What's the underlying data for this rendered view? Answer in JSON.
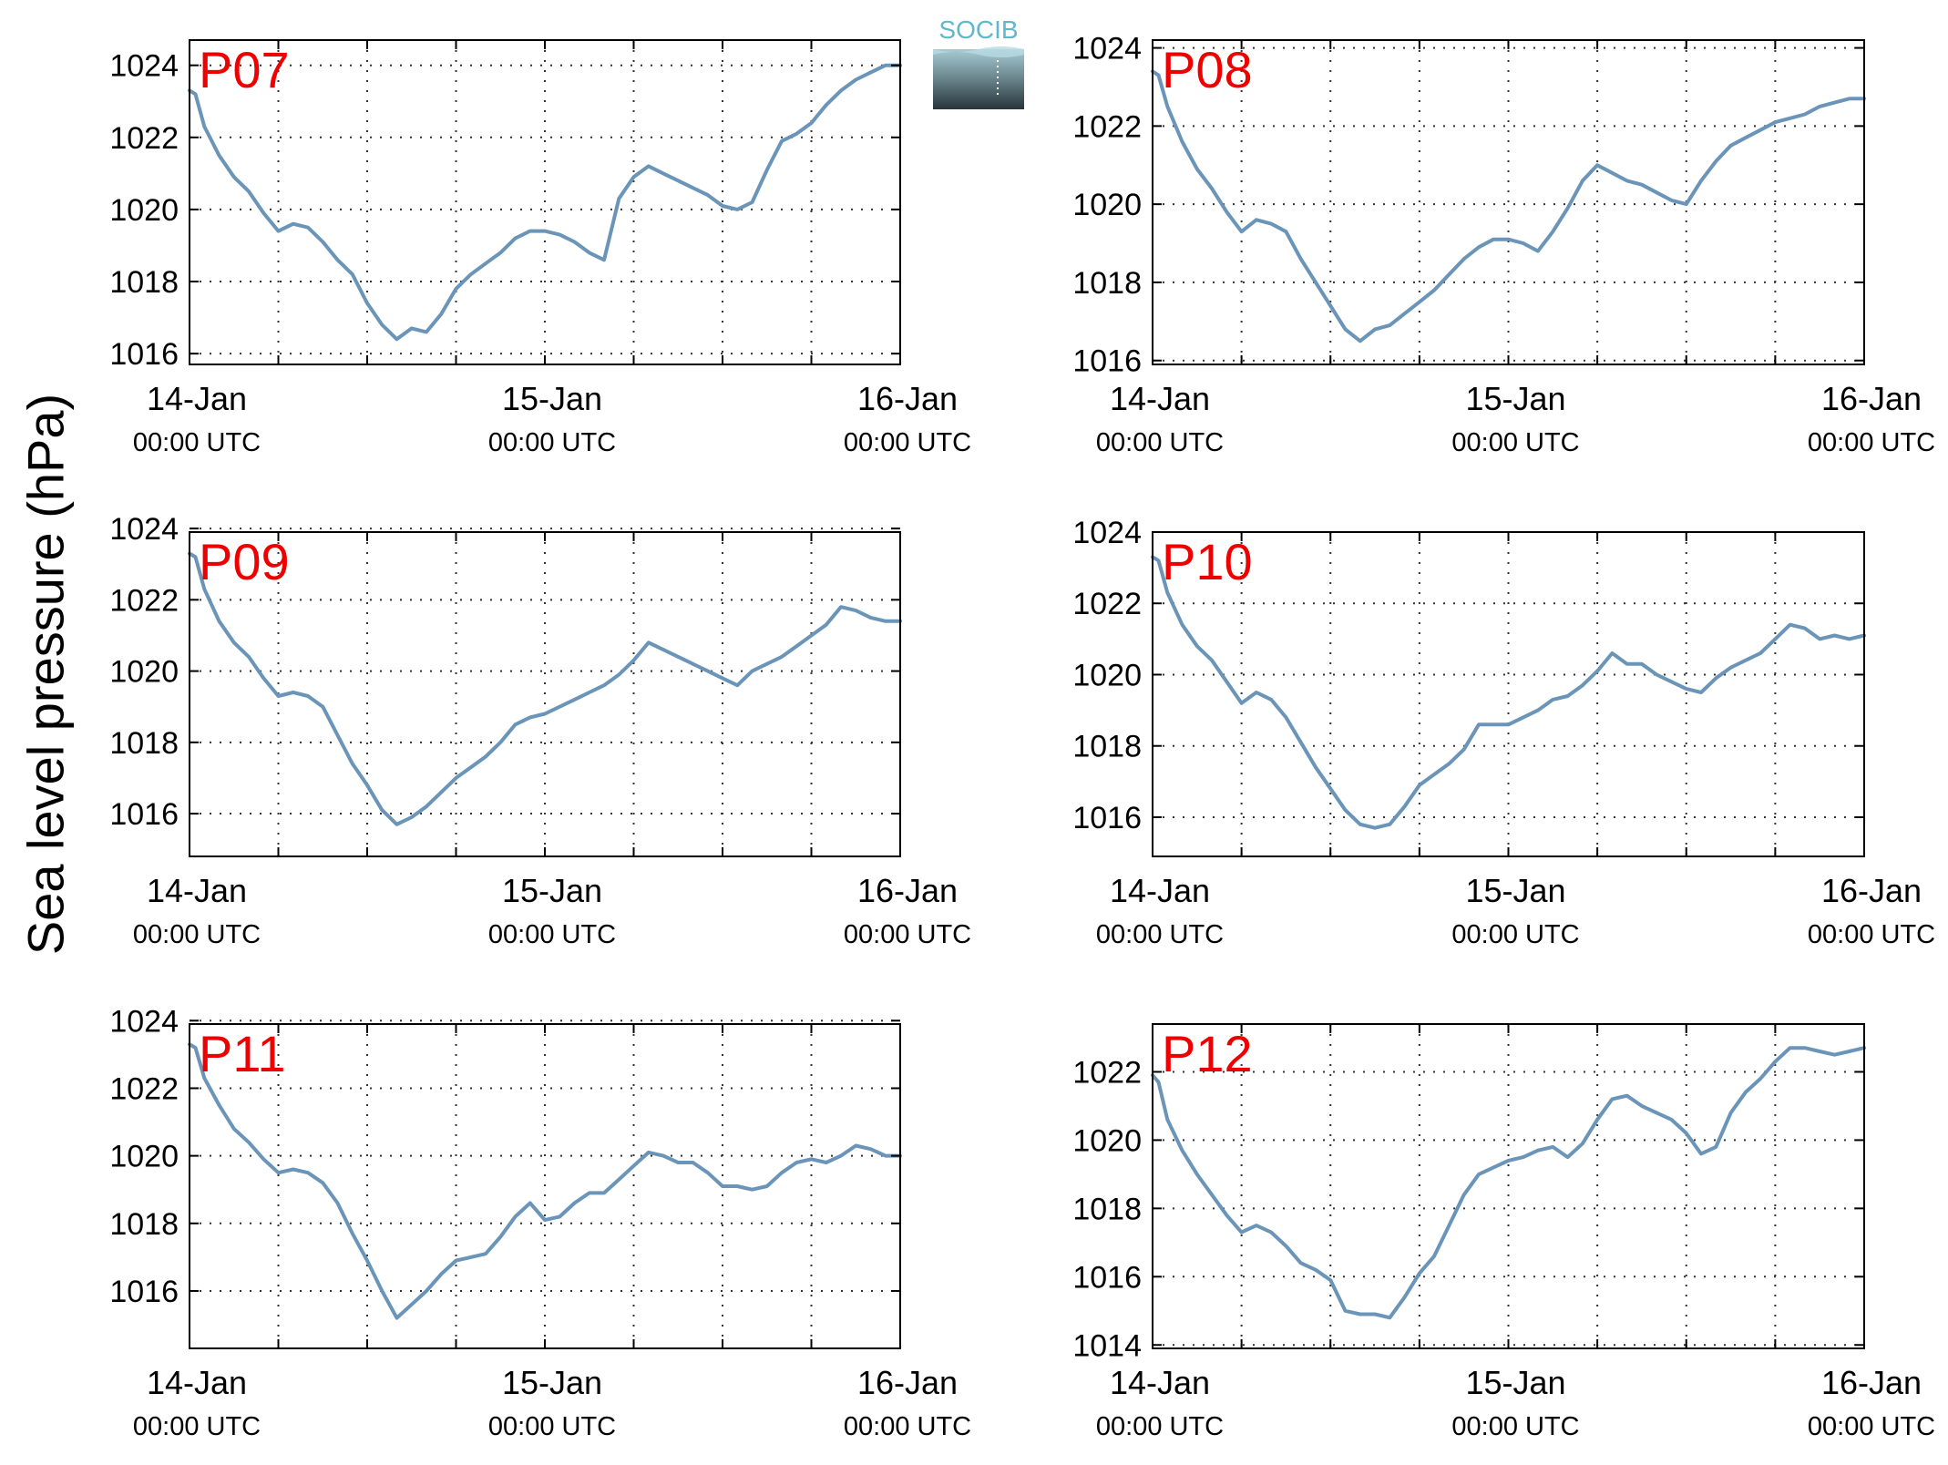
{
  "ylabel": "Sea level pressure (hPa)",
  "logo": {
    "text": "SOCIB",
    "color": "#5fb8cc"
  },
  "colors": {
    "line": "#6a95b8",
    "title": "#ee0000",
    "grid": "#333333"
  },
  "chart_data": [
    {
      "type": "line",
      "title": "P07",
      "xlabels": [
        [
          "14-Jan",
          "00:00 UTC"
        ],
        [
          "15-Jan",
          "00:00 UTC"
        ],
        [
          "16-Jan",
          "00:00 UTC"
        ]
      ],
      "xlim": [
        0,
        48
      ],
      "ylim": [
        1015.7,
        1024.7
      ],
      "yticks": [
        1016,
        1018,
        1020,
        1022,
        1024
      ],
      "x": [
        0,
        0.4,
        1,
        2,
        3,
        4,
        5,
        6,
        7,
        8,
        9,
        10,
        11,
        12,
        13,
        14,
        15,
        16,
        17,
        18,
        19,
        20,
        21,
        22,
        23,
        24,
        25,
        26,
        27,
        28,
        29,
        30,
        31,
        32,
        33,
        34,
        35,
        36,
        37,
        38,
        39,
        40,
        41,
        42,
        43,
        44,
        45,
        46,
        47,
        48
      ],
      "values": [
        1023.3,
        1023.2,
        1022.3,
        1021.5,
        1020.9,
        1020.5,
        1019.9,
        1019.4,
        1019.6,
        1019.5,
        1019.1,
        1018.6,
        1018.2,
        1017.4,
        1016.8,
        1016.4,
        1016.7,
        1016.6,
        1017.1,
        1017.8,
        1018.2,
        1018.5,
        1018.8,
        1019.2,
        1019.4,
        1019.4,
        1019.3,
        1019.1,
        1018.8,
        1018.6,
        1020.3,
        1020.9,
        1021.2,
        1021.0,
        1020.8,
        1020.6,
        1020.4,
        1020.1,
        1020.0,
        1020.2,
        1021.1,
        1021.9,
        1022.1,
        1022.4,
        1022.9,
        1023.3,
        1023.6,
        1023.8,
        1024.0,
        1024.0
      ]
    },
    {
      "type": "line",
      "title": "P08",
      "xlabels": [
        [
          "14-Jan",
          "00:00 UTC"
        ],
        [
          "15-Jan",
          "00:00 UTC"
        ],
        [
          "16-Jan",
          "00:00 UTC"
        ]
      ],
      "xlim": [
        0,
        48
      ],
      "ylim": [
        1015.9,
        1024.2
      ],
      "yticks": [
        1016,
        1018,
        1020,
        1022,
        1024
      ],
      "x": [
        0,
        0.4,
        1,
        2,
        3,
        4,
        5,
        6,
        7,
        8,
        9,
        10,
        11,
        12,
        13,
        14,
        15,
        16,
        17,
        18,
        19,
        20,
        21,
        22,
        23,
        24,
        25,
        26,
        27,
        28,
        29,
        30,
        31,
        32,
        33,
        34,
        35,
        36,
        37,
        38,
        39,
        40,
        41,
        42,
        43,
        44,
        45,
        46,
        47,
        48
      ],
      "values": [
        1023.4,
        1023.3,
        1022.5,
        1021.6,
        1020.9,
        1020.4,
        1019.8,
        1019.3,
        1019.6,
        1019.5,
        1019.3,
        1018.6,
        1018.0,
        1017.4,
        1016.8,
        1016.5,
        1016.8,
        1016.9,
        1017.2,
        1017.5,
        1017.8,
        1018.2,
        1018.6,
        1018.9,
        1019.1,
        1019.1,
        1019.0,
        1018.8,
        1019.3,
        1019.9,
        1020.6,
        1021.0,
        1020.8,
        1020.6,
        1020.5,
        1020.3,
        1020.1,
        1020.0,
        1020.6,
        1021.1,
        1021.5,
        1021.7,
        1021.9,
        1022.1,
        1022.2,
        1022.3,
        1022.5,
        1022.6,
        1022.7,
        1022.7
      ]
    },
    {
      "type": "line",
      "title": "P09",
      "xlabels": [
        [
          "14-Jan",
          "00:00 UTC"
        ],
        [
          "15-Jan",
          "00:00 UTC"
        ],
        [
          "16-Jan",
          "00:00 UTC"
        ]
      ],
      "xlim": [
        0,
        48
      ],
      "ylim": [
        1014.8,
        1023.9
      ],
      "yticks": [
        1016,
        1018,
        1020,
        1022,
        1024
      ],
      "x": [
        0,
        0.4,
        1,
        2,
        3,
        4,
        5,
        6,
        7,
        8,
        9,
        10,
        11,
        12,
        13,
        14,
        15,
        16,
        17,
        18,
        19,
        20,
        21,
        22,
        23,
        24,
        25,
        26,
        27,
        28,
        29,
        30,
        31,
        32,
        33,
        34,
        35,
        36,
        37,
        38,
        39,
        40,
        41,
        42,
        43,
        44,
        45,
        46,
        47,
        48
      ],
      "values": [
        1023.3,
        1023.2,
        1022.3,
        1021.4,
        1020.8,
        1020.4,
        1019.8,
        1019.3,
        1019.4,
        1019.3,
        1019.0,
        1018.2,
        1017.4,
        1016.8,
        1016.1,
        1015.7,
        1015.9,
        1016.2,
        1016.6,
        1017.0,
        1017.3,
        1017.6,
        1018.0,
        1018.5,
        1018.7,
        1018.8,
        1019.0,
        1019.2,
        1019.4,
        1019.6,
        1019.9,
        1020.3,
        1020.8,
        1020.6,
        1020.4,
        1020.2,
        1020.0,
        1019.8,
        1019.6,
        1020.0,
        1020.2,
        1020.4,
        1020.7,
        1021.0,
        1021.3,
        1021.8,
        1021.7,
        1021.5,
        1021.4,
        1021.4
      ]
    },
    {
      "type": "line",
      "title": "P10",
      "xlabels": [
        [
          "14-Jan",
          "00:00 UTC"
        ],
        [
          "15-Jan",
          "00:00 UTC"
        ],
        [
          "16-Jan",
          "00:00 UTC"
        ]
      ],
      "xlim": [
        0,
        48
      ],
      "ylim": [
        1014.9,
        1024.0
      ],
      "yticks": [
        1016,
        1018,
        1020,
        1022,
        1024
      ],
      "x": [
        0,
        0.4,
        1,
        2,
        3,
        4,
        5,
        6,
        7,
        8,
        9,
        10,
        11,
        12,
        13,
        14,
        15,
        16,
        17,
        18,
        19,
        20,
        21,
        22,
        23,
        24,
        25,
        26,
        27,
        28,
        29,
        30,
        31,
        32,
        33,
        34,
        35,
        36,
        37,
        38,
        39,
        40,
        41,
        42,
        43,
        44,
        45,
        46,
        47,
        48
      ],
      "values": [
        1023.3,
        1023.2,
        1022.3,
        1021.4,
        1020.8,
        1020.4,
        1019.8,
        1019.2,
        1019.5,
        1019.3,
        1018.8,
        1018.1,
        1017.4,
        1016.8,
        1016.2,
        1015.8,
        1015.7,
        1015.8,
        1016.3,
        1016.9,
        1017.2,
        1017.5,
        1017.9,
        1018.6,
        1018.6,
        1018.6,
        1018.8,
        1019.0,
        1019.3,
        1019.4,
        1019.7,
        1020.1,
        1020.6,
        1020.3,
        1020.3,
        1020.0,
        1019.8,
        1019.6,
        1019.5,
        1019.9,
        1020.2,
        1020.4,
        1020.6,
        1021.0,
        1021.4,
        1021.3,
        1021.0,
        1021.1,
        1021.0,
        1021.1
      ]
    },
    {
      "type": "line",
      "title": "P11",
      "xlabels": [
        [
          "14-Jan",
          "00:00 UTC"
        ],
        [
          "15-Jan",
          "00:00 UTC"
        ],
        [
          "16-Jan",
          "00:00 UTC"
        ]
      ],
      "xlim": [
        0,
        48
      ],
      "ylim": [
        1014.3,
        1023.9
      ],
      "yticks": [
        1016,
        1018,
        1020,
        1022,
        1024
      ],
      "x": [
        0,
        0.4,
        1,
        2,
        3,
        4,
        5,
        6,
        7,
        8,
        9,
        10,
        11,
        12,
        13,
        14,
        15,
        16,
        17,
        18,
        19,
        20,
        21,
        22,
        23,
        24,
        25,
        26,
        27,
        28,
        29,
        30,
        31,
        32,
        33,
        34,
        35,
        36,
        37,
        38,
        39,
        40,
        41,
        42,
        43,
        44,
        45,
        46,
        47,
        48
      ],
      "values": [
        1023.3,
        1023.2,
        1022.3,
        1021.5,
        1020.8,
        1020.4,
        1019.9,
        1019.5,
        1019.6,
        1019.5,
        1019.2,
        1018.6,
        1017.7,
        1016.9,
        1016.0,
        1015.2,
        1015.6,
        1016.0,
        1016.5,
        1016.9,
        1017.0,
        1017.1,
        1017.6,
        1018.2,
        1018.6,
        1018.1,
        1018.2,
        1018.6,
        1018.9,
        1018.9,
        1019.3,
        1019.7,
        1020.1,
        1020.0,
        1019.8,
        1019.8,
        1019.5,
        1019.1,
        1019.1,
        1019.0,
        1019.1,
        1019.5,
        1019.8,
        1019.9,
        1019.8,
        1020.0,
        1020.3,
        1020.2,
        1020.0,
        1020.0
      ]
    },
    {
      "type": "line",
      "title": "P12",
      "xlabels": [
        [
          "14-Jan",
          "00:00 UTC"
        ],
        [
          "15-Jan",
          "00:00 UTC"
        ],
        [
          "16-Jan",
          "00:00 UTC"
        ]
      ],
      "xlim": [
        0,
        48
      ],
      "ylim": [
        1013.9,
        1023.4
      ],
      "yticks": [
        1014,
        1016,
        1018,
        1020,
        1022
      ],
      "x": [
        0,
        0.4,
        1,
        2,
        3,
        4,
        5,
        6,
        7,
        8,
        9,
        10,
        11,
        12,
        13,
        14,
        15,
        16,
        17,
        18,
        19,
        20,
        21,
        22,
        23,
        24,
        25,
        26,
        27,
        28,
        29,
        30,
        31,
        32,
        33,
        34,
        35,
        36,
        37,
        38,
        39,
        40,
        41,
        42,
        43,
        44,
        45,
        46,
        47,
        48
      ],
      "values": [
        1021.9,
        1021.7,
        1020.6,
        1019.7,
        1019.0,
        1018.4,
        1017.8,
        1017.3,
        1017.5,
        1017.3,
        1016.9,
        1016.4,
        1016.2,
        1015.9,
        1015.0,
        1014.9,
        1014.9,
        1014.8,
        1015.4,
        1016.1,
        1016.6,
        1017.5,
        1018.4,
        1019.0,
        1019.2,
        1019.4,
        1019.5,
        1019.7,
        1019.8,
        1019.5,
        1019.9,
        1020.6,
        1021.2,
        1021.3,
        1021.0,
        1020.8,
        1020.6,
        1020.2,
        1019.6,
        1019.8,
        1020.8,
        1021.4,
        1021.8,
        1022.3,
        1022.7,
        1022.7,
        1022.6,
        1022.5,
        1022.6,
        1022.7
      ]
    }
  ]
}
